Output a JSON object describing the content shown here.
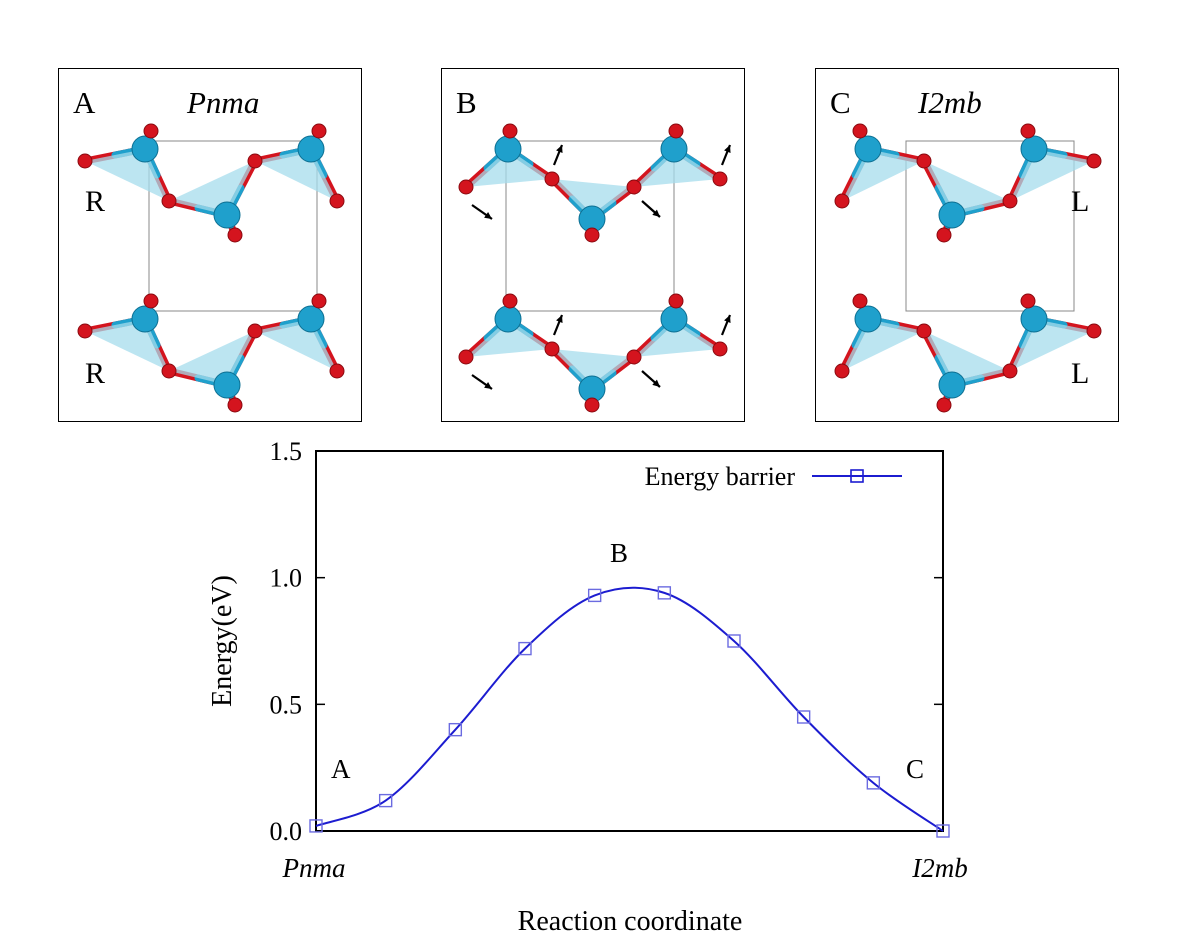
{
  "panels": [
    {
      "letter": "A",
      "group": "Pnma",
      "chirality": [
        "R",
        "R"
      ]
    },
    {
      "letter": "B",
      "group": "",
      "chirality": []
    },
    {
      "letter": "C",
      "group": "I2mb",
      "chirality": [
        "L",
        "L"
      ]
    }
  ],
  "colors": {
    "metal": "#1fa0cc",
    "oxygen": "#d4141e",
    "polyhedron": "#a6dcec",
    "curve": "#1c1cd0",
    "marker": "#6b6be0"
  },
  "chart_data": {
    "type": "line",
    "xlabel": "Reaction coordinate",
    "ylabel": "Energy(eV)",
    "ylim": [
      0,
      1.5
    ],
    "yticks": [
      "0.0",
      "0.5",
      "1.0",
      "1.5"
    ],
    "x_end_labels": [
      "Pnma",
      "I2mb"
    ],
    "legend": {
      "label": "Energy barrier",
      "position": "top-right"
    },
    "annotations": [
      "A",
      "B",
      "C"
    ],
    "series": [
      {
        "name": "Energy barrier",
        "x": [
          0,
          1,
          2,
          3,
          4,
          5,
          6,
          7,
          8,
          9
        ],
        "values": [
          0.02,
          0.12,
          0.4,
          0.72,
          0.93,
          0.94,
          0.75,
          0.45,
          0.19,
          0.0
        ]
      }
    ]
  }
}
